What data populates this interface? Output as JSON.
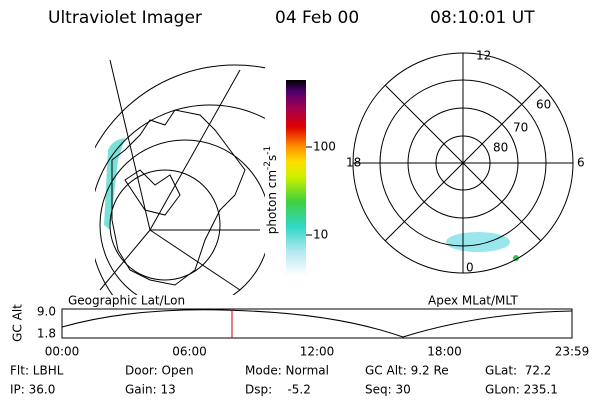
{
  "header": {
    "instrument": "Ultraviolet Imager",
    "date": "04 Feb 00",
    "time": "08:10:01 UT"
  },
  "colorbar": {
    "unit_parts": [
      "photon cm",
      "-2",
      "s",
      "-1"
    ],
    "ticks": [
      "100",
      "10"
    ]
  },
  "polar": {
    "mlt_labels": [
      "12",
      "18",
      "6",
      "0"
    ],
    "lat_labels": [
      "60",
      "70",
      "80"
    ]
  },
  "panel_labels": {
    "left": "Geographic Lat/Lon",
    "right": "Apex MLat/MLT"
  },
  "altitude_plot": {
    "axis_label": "GC Alt",
    "y_labels": [
      "9.0",
      "1.8"
    ],
    "time_labels": [
      "00:00",
      "06:00",
      "12:00",
      "18:00",
      "23:59"
    ]
  },
  "info": {
    "rows": [
      [
        "Flt: LBHL",
        "Door: Open",
        "Mode: Normal",
        "GC Alt: 9.2 Re",
        "GLat:  72.2"
      ],
      [
        "IP: 36.0",
        "Gain: 13",
        "Dsp:    -5.2",
        "Seq: 30",
        "GLon: 235.1"
      ]
    ]
  }
}
